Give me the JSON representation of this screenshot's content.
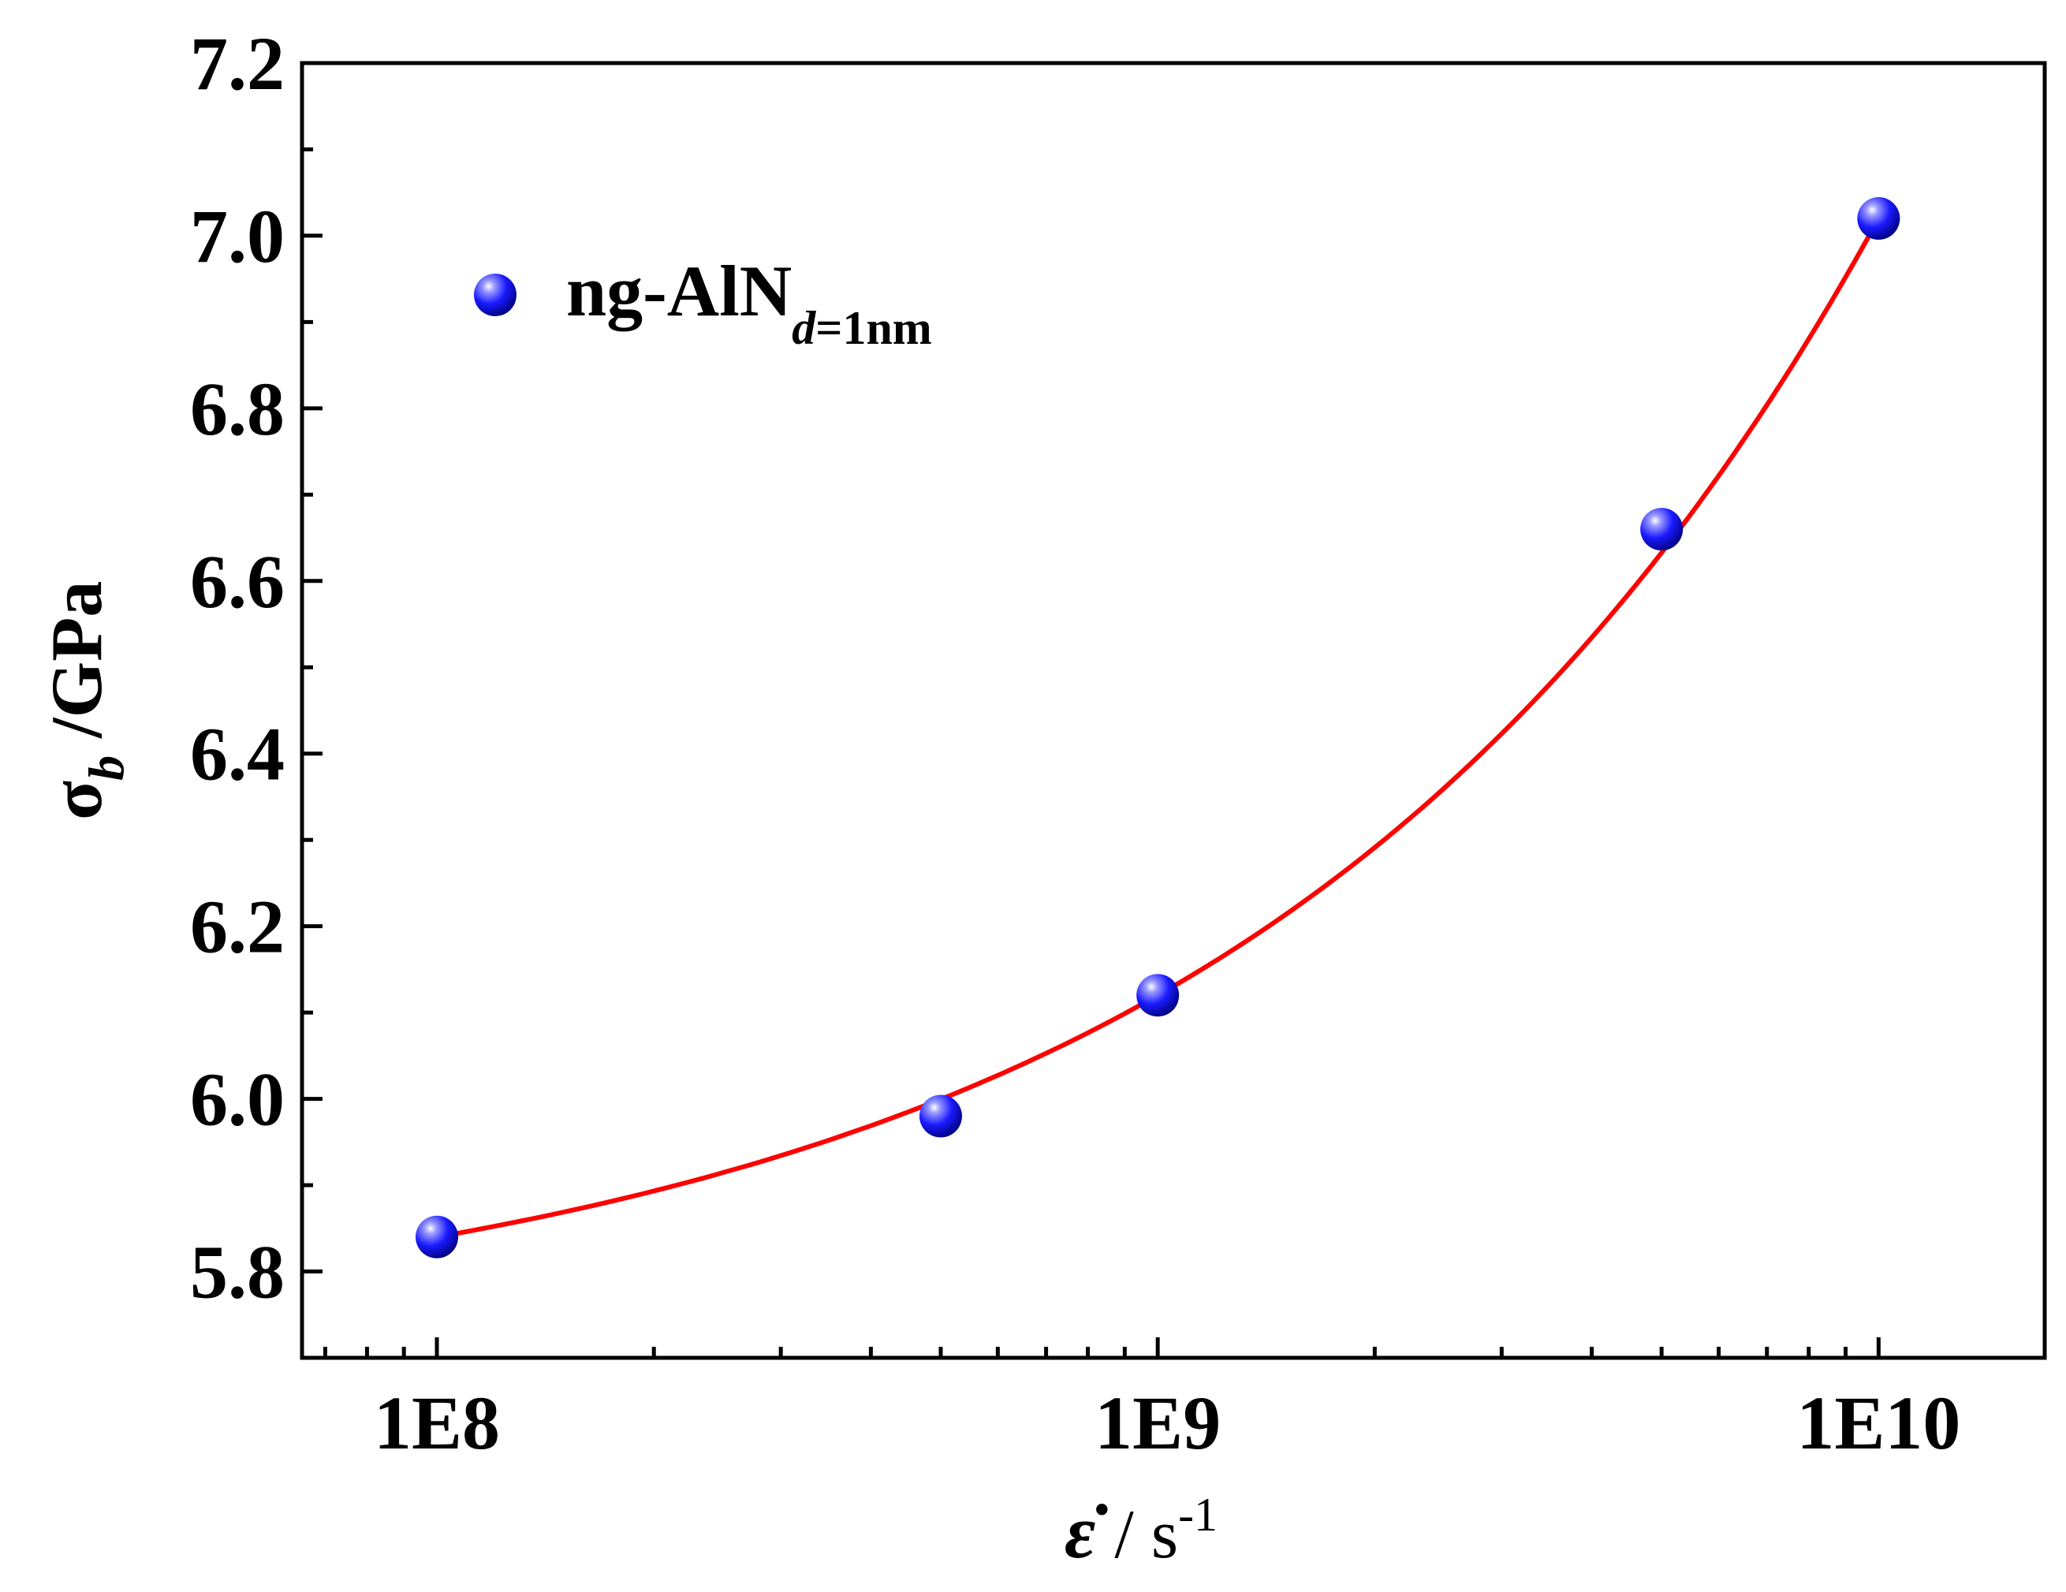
{
  "chart_data": {
    "type": "scatter",
    "title": "",
    "xscale": "log",
    "xlim": [
      65000000,
      17000000000
    ],
    "ylim": [
      5.7,
      7.2
    ],
    "x_ticks": [
      100000000,
      1000000000,
      10000000000
    ],
    "x_tick_labels": [
      "1E8",
      "1E9",
      "1E10"
    ],
    "y_ticks": [
      5.8,
      6.0,
      6.2,
      6.4,
      6.6,
      6.8,
      7.0,
      7.2
    ],
    "y_tick_labels": [
      "5.8",
      "6.0",
      "6.2",
      "6.4",
      "6.6",
      "6.8",
      "7.0",
      "7.2"
    ],
    "xlabel": {
      "symbol": "ε̇",
      "unit": "/ s",
      "sup": "-1"
    },
    "ylabel": {
      "symbol": "σ",
      "sub": "b",
      "unit": "/GPa"
    },
    "legend": {
      "main": "ng-AlN",
      "sub_italic": "d",
      "sub_rest": "=1nm",
      "position": "top-left"
    },
    "series": [
      {
        "name": "ng-AlN d=1nm",
        "x": [
          100000000,
          500000000,
          1000000000,
          5000000000,
          10000000000
        ],
        "y": [
          5.84,
          5.98,
          6.12,
          6.66,
          7.02
        ],
        "marker_color": "#1a1aff"
      }
    ],
    "fit": {
      "type": "exponential",
      "color": "#ff0000",
      "x_range": [
        100000000,
        10000000000
      ]
    }
  }
}
